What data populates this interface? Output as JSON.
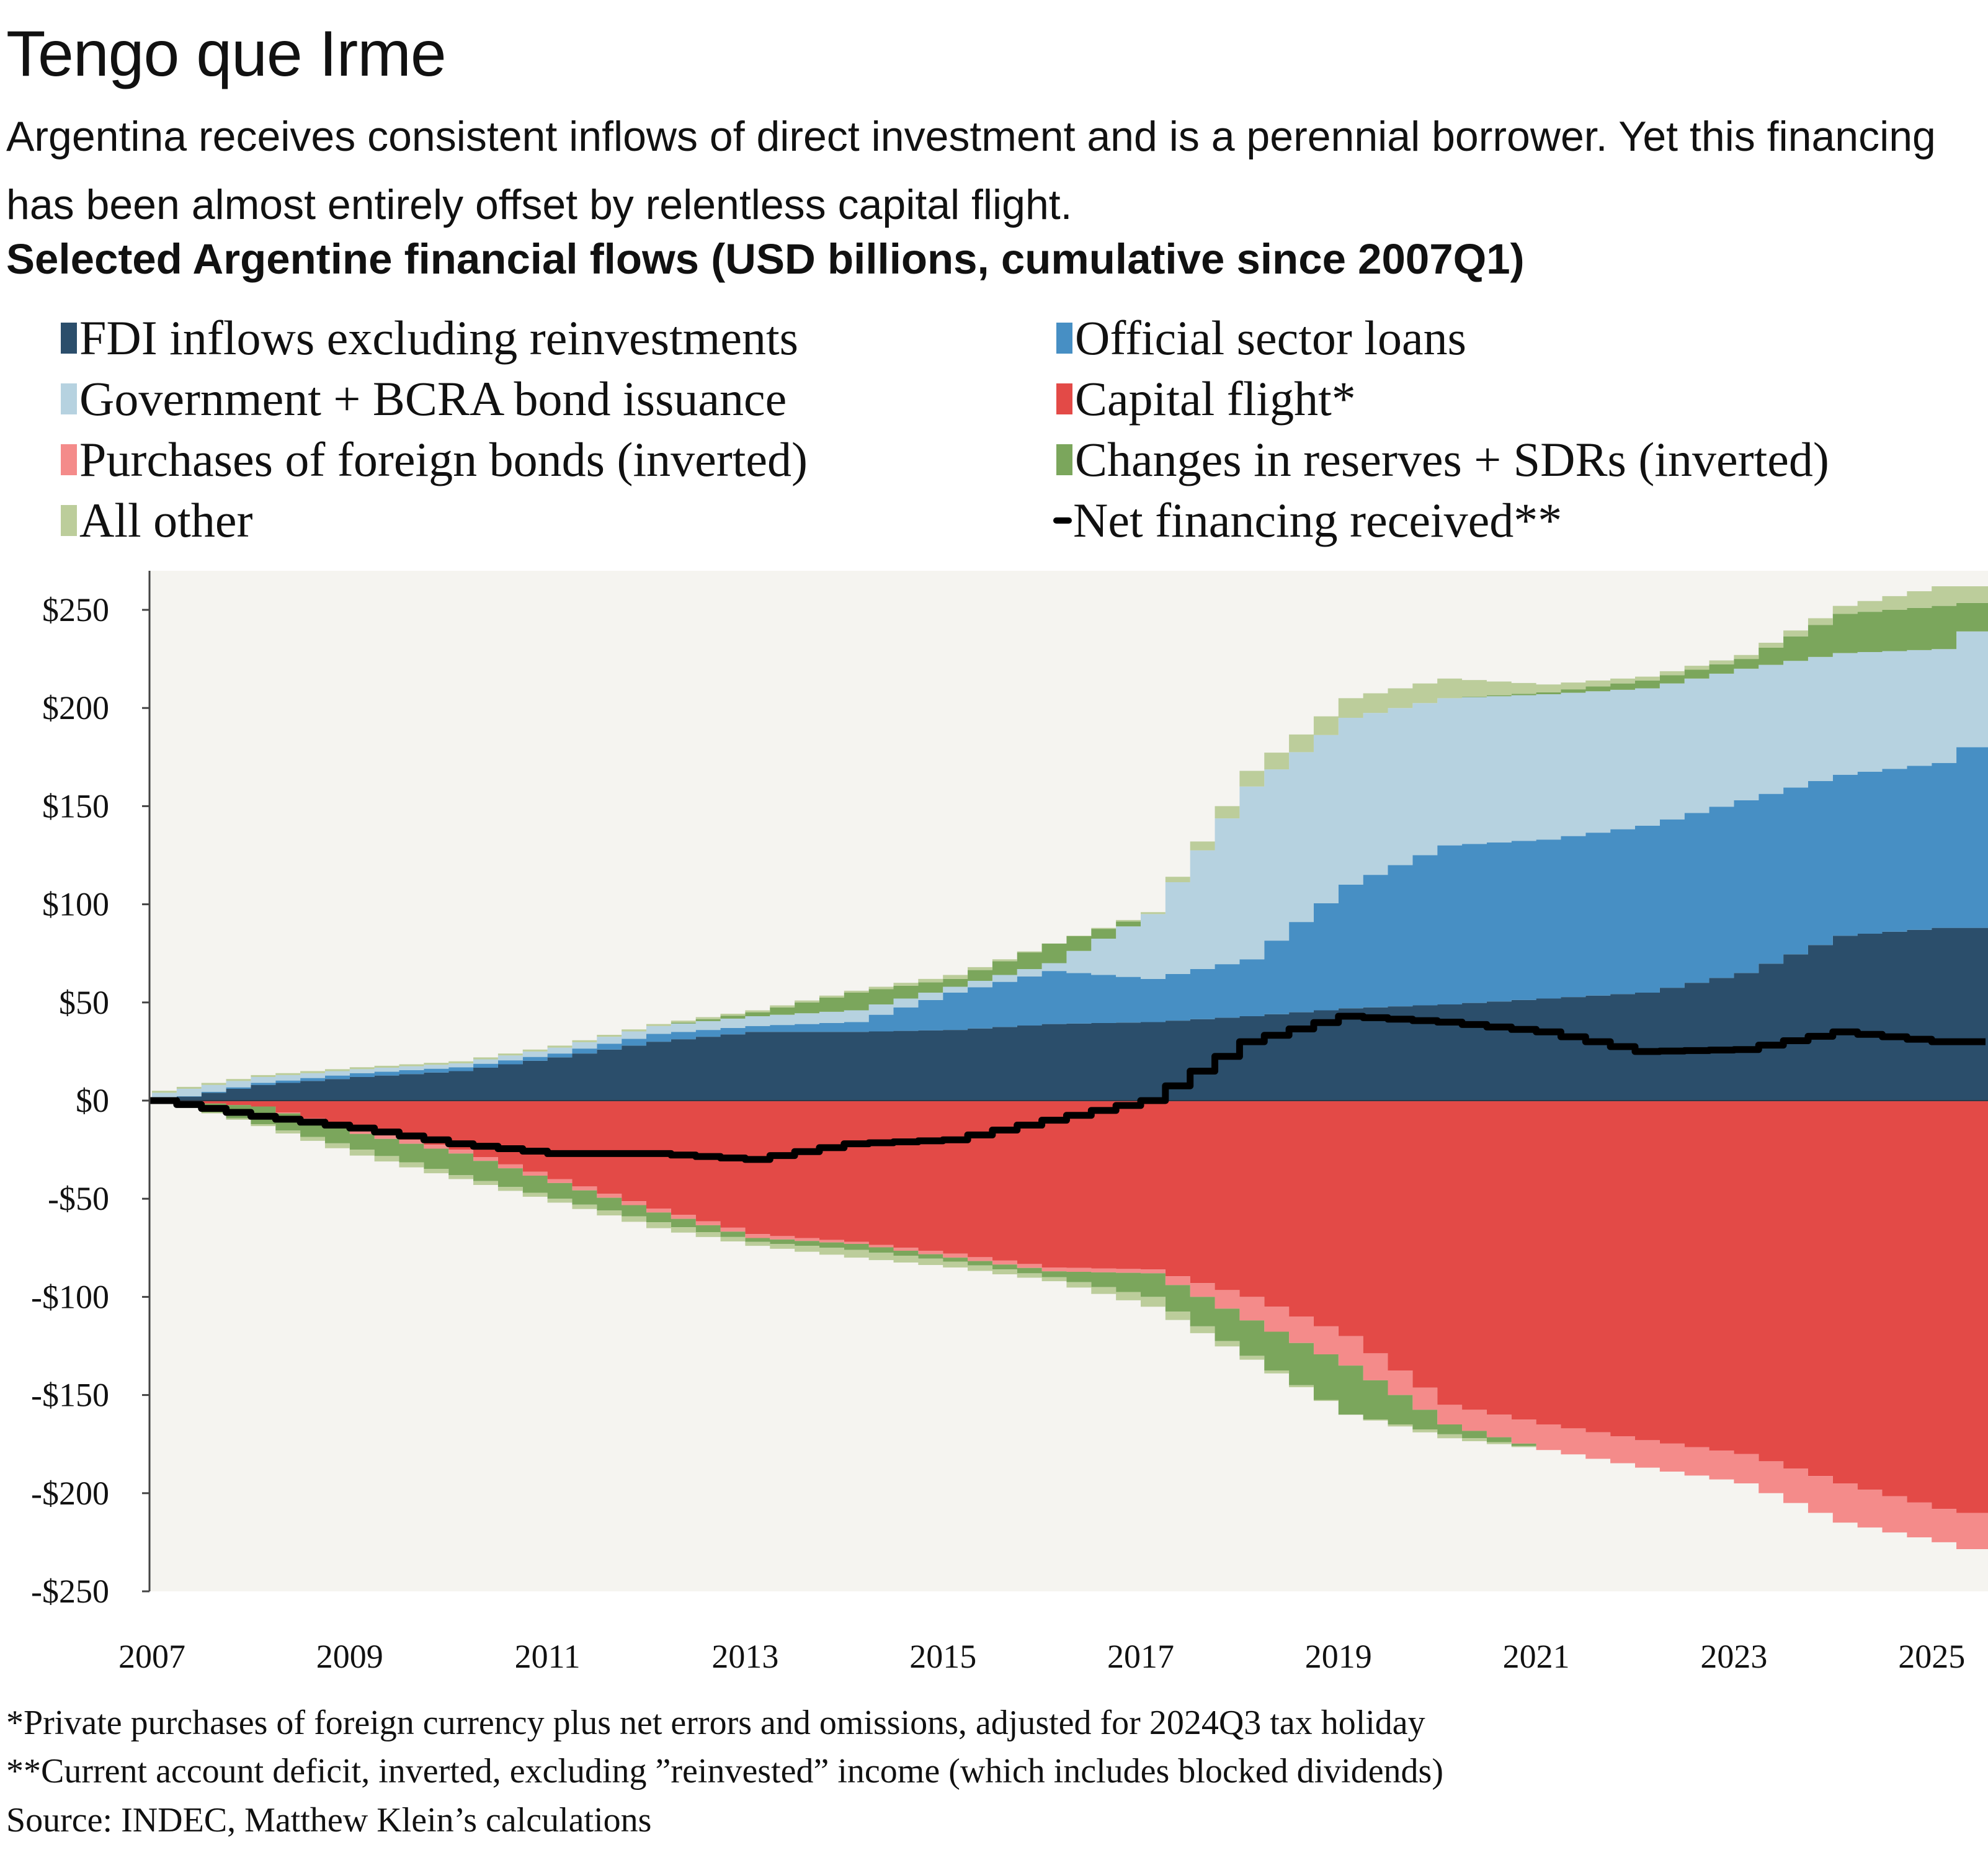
{
  "title": "Tengo que Irme",
  "subtitle": "Argentina receives consistent inflows of direct investment and is a perennial borrower. Yet this financing has been almost entirely offset by relentless capital flight.",
  "chart_data": {
    "type": "area",
    "title": "Selected Argentine financial flows (USD billions, cumulative since 2007Q1)",
    "stacked": true,
    "step": "quarterly",
    "xlabel": "",
    "ylabel": "",
    "ylim": [
      -250,
      270
    ],
    "xlim": [
      2007,
      2025.55
    ],
    "yticks": [
      250,
      200,
      150,
      100,
      50,
      0,
      -50,
      -100,
      -150,
      -200,
      -250
    ],
    "ytick_labels": [
      "$250",
      "$200",
      "$150",
      "$100",
      "$50",
      "$0",
      "-$50",
      "-$100",
      "-$150",
      "-$200",
      "-$250"
    ],
    "xticks": [
      2007,
      2009,
      2011,
      2013,
      2015,
      2017,
      2019,
      2021,
      2023,
      2025
    ],
    "xtick_labels": [
      "2007",
      "2009",
      "2011",
      "2013",
      "2015",
      "2017",
      "2019",
      "2021",
      "2023",
      "2025"
    ],
    "grid": false,
    "legend_placement": "top",
    "background": "#f5f4f0",
    "x": [
      2007,
      2008,
      2009,
      2010,
      2011,
      2012,
      2013,
      2014,
      2015,
      2016,
      2017,
      2018,
      2019,
      2020,
      2021,
      2022,
      2023,
      2024,
      2025,
      2025.5
    ],
    "series": [
      {
        "name": "FDI inflows excluding reinvestments",
        "color": "#2b4e6b",
        "side": "pos",
        "values": [
          0,
          8,
          12,
          15,
          22,
          30,
          35,
          35,
          36,
          39,
          40,
          43,
          47,
          49,
          52,
          55,
          65,
          84,
          88,
          88
        ]
      },
      {
        "name": "Official sector loans",
        "color": "#478fc4",
        "side": "pos",
        "values": [
          0,
          1,
          2,
          2,
          2,
          4,
          3,
          5,
          19,
          27,
          22,
          29,
          63,
          81,
          81,
          85,
          88,
          82,
          84,
          100
        ]
      },
      {
        "name": "Government + BCRA bond issuance",
        "color": "#b6d2e0",
        "side": "pos",
        "values": [
          4,
          3,
          2,
          2,
          3,
          4,
          5,
          6,
          3,
          4,
          33,
          88,
          85,
          75,
          74,
          70,
          67,
          62,
          58,
          60
        ]
      },
      {
        "name": "Capital flight*",
        "color": "#e34a47",
        "side": "neg",
        "values": [
          0,
          -3,
          -15,
          -25,
          -40,
          -55,
          -68,
          -72,
          -78,
          -85,
          -86,
          -100,
          -120,
          -155,
          -165,
          -173,
          -180,
          -195,
          -208,
          -212
        ]
      },
      {
        "name": "Purchases of foreign bonds (inverted)",
        "color": "#f48b8a",
        "side": "neg",
        "values": [
          0,
          0,
          -2,
          -2,
          -2,
          -2,
          -2,
          -1,
          -2,
          -2,
          -2,
          -12,
          -15,
          -10,
          -13,
          -14,
          -15,
          -20,
          -17,
          -20
        ]
      },
      {
        "name": "Changes in reserves + SDRs (inverted)",
        "color": "#7ba65c",
        "side": "both",
        "values_pos": [
          0,
          0,
          0,
          0,
          0,
          0,
          2,
          9,
          4,
          10,
          0,
          0,
          0,
          0,
          1,
          4,
          5,
          20,
          22,
          7
        ],
        "values_neg": [
          0,
          -9,
          -8,
          -11,
          -8,
          -5,
          -2,
          -3,
          -2,
          -3,
          -12,
          -18,
          -25,
          -5,
          0,
          0,
          0,
          0,
          0,
          0
        ]
      },
      {
        "name": "All other",
        "color": "#bccd9b",
        "side": "both",
        "values_pos": [
          1,
          1,
          1,
          1,
          1,
          1,
          1,
          1,
          2,
          0,
          1,
          8,
          10,
          10,
          4,
          2,
          2,
          4,
          10,
          7
        ],
        "values_neg": [
          0,
          -1,
          -3,
          -2,
          -2,
          -3,
          -2,
          -4,
          -3,
          -2,
          -5,
          -2,
          0,
          -2,
          0,
          0,
          0,
          0,
          0,
          0
        ]
      }
    ],
    "line": {
      "name": "Net financing received**",
      "color": "#000000",
      "values": [
        0,
        -8,
        -14,
        -22,
        -27,
        -27,
        -30,
        -22,
        -20,
        -10,
        0,
        30,
        43,
        40,
        35,
        25,
        26,
        35,
        30,
        30
      ]
    }
  },
  "legend": [
    "FDI inflows excluding reinvestments",
    "Official sector loans",
    "Government + BCRA bond issuance",
    "Capital flight*",
    "Purchases of foreign bonds (inverted)",
    "Changes in reserves + SDRs (inverted)",
    "All other",
    "Net financing received**"
  ],
  "footnotes": [
    "*Private purchases of foreign currency plus net errors and omissions, adjusted for 2024Q3 tax holiday",
    "**Current account deficit, inverted, excluding ”reinvested” income (which includes blocked dividends)",
    "Source: INDEC, Matthew Klein’s calculations"
  ]
}
